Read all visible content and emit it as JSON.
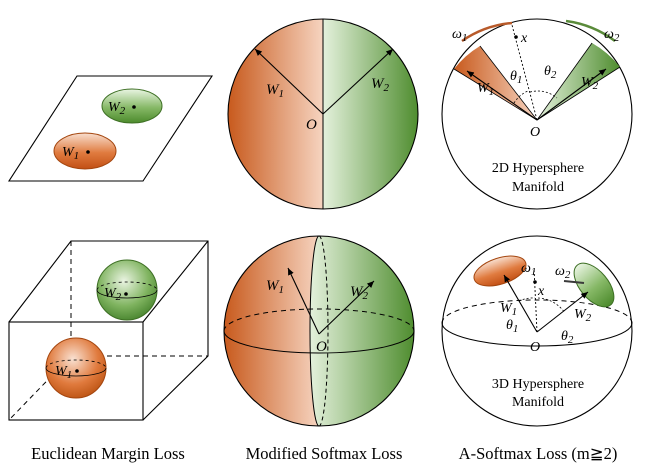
{
  "captions": {
    "euclidean": "Euclidean Margin Loss",
    "modified": "Modified Softmax Loss",
    "asoftmax": "A-Softmax Loss (m≧2)"
  },
  "labels": {
    "w1_base": "W",
    "w1_sub": "1",
    "w2_base": "W",
    "w2_sub": "2",
    "origin": "O",
    "omega1_base": "ω",
    "omega1_sub": "1",
    "omega2_base": "ω",
    "omega2_sub": "2",
    "x": "x",
    "theta1_base": "θ",
    "theta1_sub": "1",
    "theta2_base": "θ",
    "theta2_sub": "2"
  },
  "manifold_2d": {
    "line1": "2D Hypersphere",
    "line2": "Manifold"
  },
  "manifold_3d": {
    "line1": "3D Hypersphere",
    "line2": "Manifold"
  },
  "colors": {
    "orange_light": "#f6d3bf",
    "orange_dark": "#c4561a",
    "green_light": "#e2f0da",
    "green_dark": "#4f8a31",
    "arc_orange": "#b85a2a",
    "arc_green": "#5a8b3a"
  }
}
